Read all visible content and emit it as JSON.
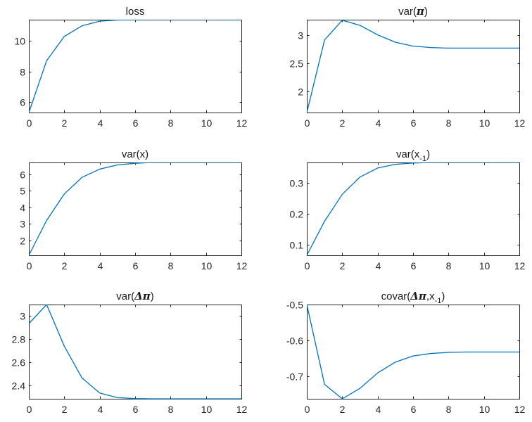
{
  "figure": {
    "background": "#ffffff",
    "line_color": "#0072bd",
    "axis_color": "#262626"
  },
  "chart_data": [
    {
      "type": "line",
      "title": "loss",
      "title_parts": [
        {
          "text": "loss",
          "style": "normal"
        }
      ],
      "xlabel": "",
      "ylabel": "",
      "xlim": [
        0,
        12
      ],
      "ylim": [
        5.3,
        11.4
      ],
      "xticks": [
        0,
        2,
        4,
        6,
        8,
        10,
        12
      ],
      "yticks": [
        6,
        8,
        10
      ],
      "ytick_labels": [
        "6",
        "8",
        "10"
      ],
      "grid": false,
      "x": [
        0,
        1,
        2,
        3,
        4,
        5,
        6,
        7,
        8,
        9,
        10,
        11,
        12
      ],
      "y": [
        5.3,
        8.7,
        10.3,
        11.0,
        11.3,
        11.38,
        11.4,
        11.4,
        11.4,
        11.4,
        11.4,
        11.4,
        11.4
      ]
    },
    {
      "type": "line",
      "title": "var(π)",
      "title_parts": [
        {
          "text": "var(",
          "style": "normal"
        },
        {
          "text": "π",
          "style": "symbol"
        },
        {
          "text": ")",
          "style": "normal"
        }
      ],
      "xlabel": "",
      "ylabel": "",
      "xlim": [
        0,
        12
      ],
      "ylim": [
        1.63,
        3.28
      ],
      "xticks": [
        0,
        2,
        4,
        6,
        8,
        10,
        12
      ],
      "yticks": [
        2,
        2.5,
        3
      ],
      "ytick_labels": [
        "2",
        "2.5",
        "3"
      ],
      "grid": false,
      "x": [
        0,
        1,
        2,
        3,
        4,
        5,
        6,
        7,
        8,
        9,
        10,
        11,
        12
      ],
      "y": [
        1.63,
        2.92,
        3.27,
        3.18,
        3.01,
        2.88,
        2.81,
        2.785,
        2.775,
        2.775,
        2.775,
        2.775,
        2.775
      ]
    },
    {
      "type": "line",
      "title": "var(x)",
      "title_parts": [
        {
          "text": "var(x)",
          "style": "normal"
        }
      ],
      "xlabel": "",
      "ylabel": "",
      "xlim": [
        0,
        12
      ],
      "ylim": [
        1.1,
        6.7
      ],
      "xticks": [
        0,
        2,
        4,
        6,
        8,
        10,
        12
      ],
      "yticks": [
        2,
        3,
        4,
        5,
        6
      ],
      "ytick_labels": [
        "2",
        "3",
        "4",
        "5",
        "6"
      ],
      "grid": false,
      "x": [
        0,
        1,
        2,
        3,
        4,
        5,
        6,
        7,
        8,
        9,
        10,
        11,
        12
      ],
      "y": [
        1.1,
        3.2,
        4.8,
        5.8,
        6.3,
        6.55,
        6.65,
        6.7,
        6.7,
        6.7,
        6.7,
        6.7,
        6.7
      ]
    },
    {
      "type": "line",
      "title": "var(x-1)",
      "title_parts": [
        {
          "text": "var(x",
          "style": "normal"
        },
        {
          "text": "-1",
          "style": "sub"
        },
        {
          "text": ")",
          "style": "normal"
        }
      ],
      "xlabel": "",
      "ylabel": "",
      "xlim": [
        0,
        12
      ],
      "ylim": [
        0.065,
        0.365
      ],
      "xticks": [
        0,
        2,
        4,
        6,
        8,
        10,
        12
      ],
      "yticks": [
        0.1,
        0.2,
        0.3
      ],
      "ytick_labels": [
        "0.1",
        "0.2",
        "0.3"
      ],
      "grid": false,
      "x": [
        0,
        1,
        2,
        3,
        4,
        5,
        6,
        7,
        8,
        9,
        10,
        11,
        12
      ],
      "y": [
        0.065,
        0.175,
        0.262,
        0.318,
        0.347,
        0.359,
        0.363,
        0.365,
        0.365,
        0.365,
        0.365,
        0.365,
        0.365
      ]
    },
    {
      "type": "line",
      "title": "var(Δπ)",
      "title_parts": [
        {
          "text": "var(",
          "style": "normal"
        },
        {
          "text": "Δπ",
          "style": "symbol"
        },
        {
          "text": ")",
          "style": "normal"
        }
      ],
      "xlabel": "",
      "ylabel": "",
      "xlim": [
        0,
        12
      ],
      "ylim": [
        2.285,
        3.1
      ],
      "xticks": [
        0,
        2,
        4,
        6,
        8,
        10,
        12
      ],
      "yticks": [
        2.4,
        2.6,
        2.8,
        3
      ],
      "ytick_labels": [
        "2.4",
        "2.6",
        "2.8",
        "3"
      ],
      "grid": false,
      "x": [
        0,
        1,
        2,
        3,
        4,
        5,
        6,
        7,
        8,
        9,
        10,
        11,
        12
      ],
      "y": [
        2.935,
        3.1,
        2.74,
        2.465,
        2.335,
        2.295,
        2.287,
        2.285,
        2.285,
        2.285,
        2.285,
        2.285,
        2.285
      ]
    },
    {
      "type": "line",
      "title": "covar(Δπ,x-1)",
      "title_parts": [
        {
          "text": "covar(",
          "style": "normal"
        },
        {
          "text": "Δπ",
          "style": "symbol"
        },
        {
          "text": ",x",
          "style": "normal"
        },
        {
          "text": "-1",
          "style": "sub"
        },
        {
          "text": ")",
          "style": "normal"
        }
      ],
      "xlabel": "",
      "ylabel": "",
      "xlim": [
        0,
        12
      ],
      "ylim": [
        -0.762,
        -0.5
      ],
      "xticks": [
        0,
        2,
        4,
        6,
        8,
        10,
        12
      ],
      "yticks": [
        -0.7,
        -0.6,
        -0.5
      ],
      "ytick_labels": [
        "-0.7",
        "-0.6",
        "-0.5"
      ],
      "grid": false,
      "x": [
        0,
        1,
        2,
        3,
        4,
        5,
        6,
        7,
        8,
        9,
        10,
        11,
        12
      ],
      "y": [
        -0.5,
        -0.722,
        -0.762,
        -0.733,
        -0.69,
        -0.66,
        -0.643,
        -0.636,
        -0.633,
        -0.632,
        -0.632,
        -0.632,
        -0.632
      ]
    }
  ]
}
